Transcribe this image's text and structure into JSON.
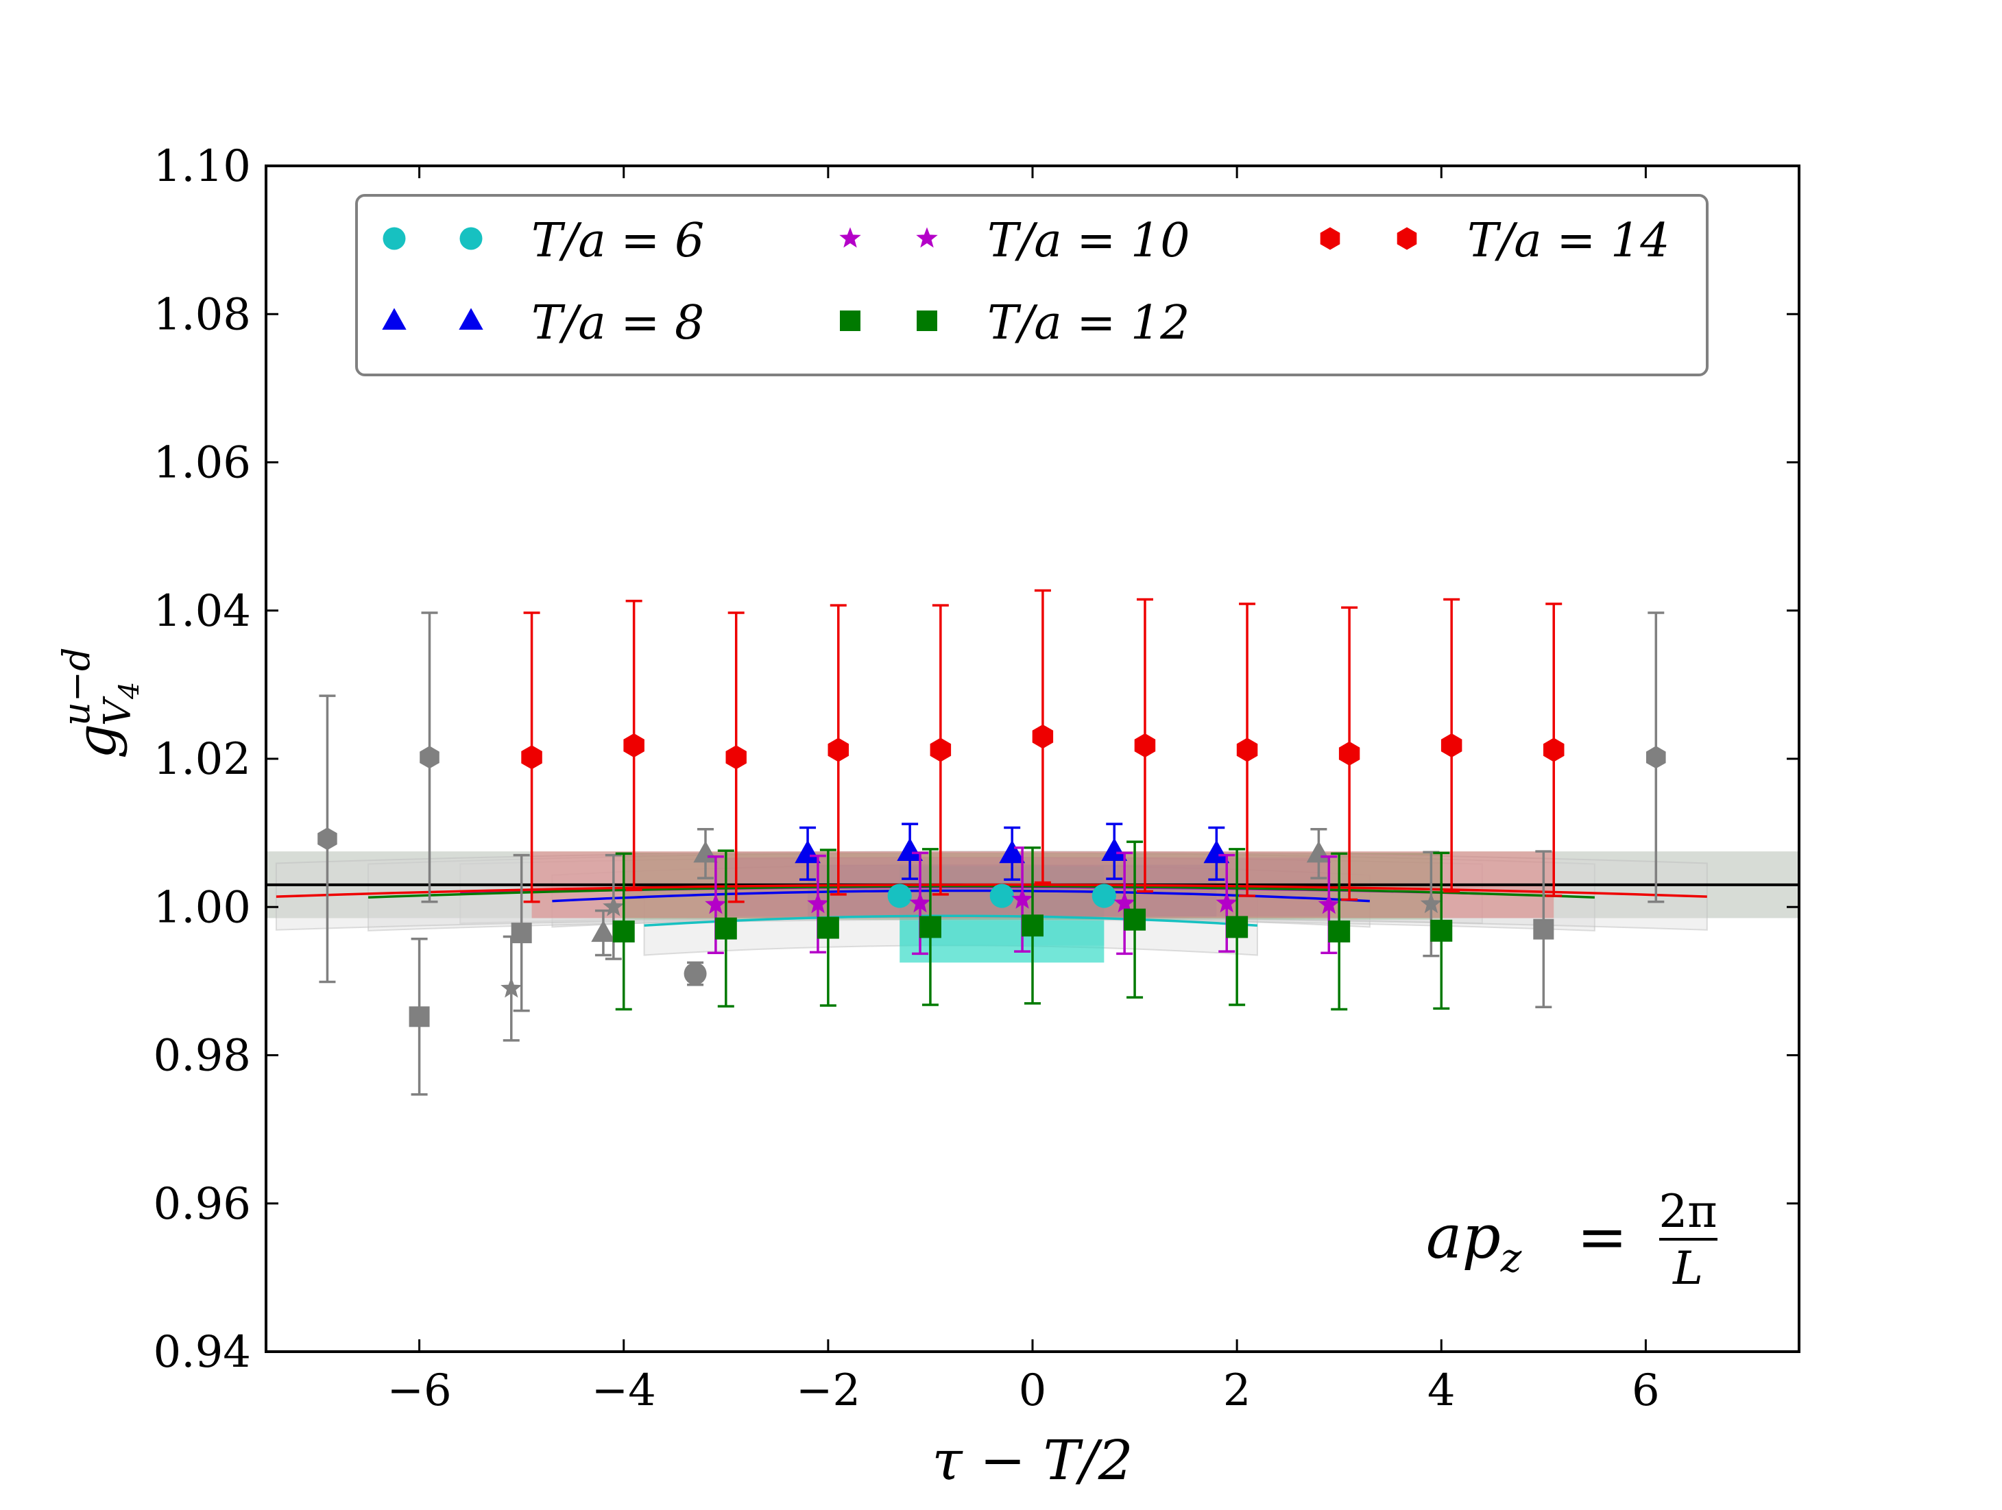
{
  "chart_data": {
    "type": "scatter",
    "title": "",
    "xlabel": "τ − T/2",
    "ylabel": "g",
    "ylabel_sup": "u−d",
    "ylabel_sub": "V",
    "ylabel_subsub": "4",
    "xlim": [
      -7.5,
      7.5
    ],
    "ylim": [
      0.94,
      1.1
    ],
    "xticks": [
      -6,
      -4,
      -2,
      0,
      2,
      4,
      6
    ],
    "xtick_labels": [
      "−6",
      "−4",
      "−2",
      "0",
      "2",
      "4",
      "6"
    ],
    "yticks": [
      0.94,
      0.96,
      0.98,
      1.0,
      1.02,
      1.04,
      1.06,
      1.08,
      1.1
    ],
    "ytick_labels": [
      "0.94",
      "0.96",
      "0.98",
      "1.00",
      "1.02",
      "1.04",
      "1.06",
      "1.08",
      "1.10"
    ],
    "legend_position": "top",
    "annotation": {
      "lhs": "ap",
      "lhs_sub": "z",
      "eq": "=",
      "num": "2π",
      "den": "L"
    },
    "reference_line": {
      "y": 1.003,
      "color": "#000000"
    },
    "global_band": {
      "center": 1.003,
      "halfwidth": 0.0045,
      "color": "#b7bfb4"
    },
    "series": [
      {
        "name": "T/a = 6",
        "label": "T/a = 6",
        "marker": "circle",
        "color": "#17c1c1",
        "points": [
          {
            "x": -1.3,
            "y": 1.0015,
            "err": 0.001
          },
          {
            "x": -0.3,
            "y": 1.0015,
            "err": 0.001
          },
          {
            "x": 0.7,
            "y": 1.0015,
            "err": 0.001
          }
        ],
        "excluded": [
          {
            "x": -3.3,
            "y": 0.991,
            "err": 0.0015
          }
        ],
        "band": {
          "x0": -1.3,
          "x1": 0.7,
          "y0": 0.9925,
          "y1": 1.0055,
          "color": "#37dcc8"
        },
        "fit_curve": {
          "x0": -3.8,
          "x1": 2.2,
          "y_edge": 0.9975,
          "y_mid": 0.9988
        },
        "fit_band_halfwidth": 0.004
      },
      {
        "name": "T/a = 8",
        "label": "T/a = 8",
        "marker": "triangle",
        "color": "#0000ee",
        "points": [
          {
            "x": -2.2,
            "y": 1.0072,
            "err": 0.0035
          },
          {
            "x": -1.2,
            "y": 1.0075,
            "err": 0.0037
          },
          {
            "x": -0.2,
            "y": 1.0072,
            "err": 0.0035
          },
          {
            "x": 0.8,
            "y": 1.0075,
            "err": 0.0037
          },
          {
            "x": 1.8,
            "y": 1.0072,
            "err": 0.0035
          }
        ],
        "excluded": [
          {
            "x": -4.2,
            "y": 0.9965,
            "err": 0.003
          },
          {
            "x": -3.2,
            "y": 1.0072,
            "err": 0.0033
          },
          {
            "x": 2.8,
            "y": 1.0072,
            "err": 0.0033
          }
        ],
        "fit_curve": {
          "x0": -4.7,
          "x1": 3.3,
          "y_edge": 1.0008,
          "y_mid": 1.0022
        },
        "fit_band_halfwidth": 0.0035
      },
      {
        "name": "T/a = 10",
        "label": "T/a = 10",
        "marker": "star",
        "color": "#b400c8",
        "points": [
          {
            "x": -3.1,
            "y": 1.0003,
            "err": 0.0065
          },
          {
            "x": -2.1,
            "y": 1.0004,
            "err": 0.0065
          },
          {
            "x": -1.1,
            "y": 1.0005,
            "err": 0.0068
          },
          {
            "x": -0.1,
            "y": 1.001,
            "err": 0.007
          },
          {
            "x": 0.9,
            "y": 1.0005,
            "err": 0.0068
          },
          {
            "x": 1.9,
            "y": 1.0005,
            "err": 0.0065
          },
          {
            "x": 2.9,
            "y": 1.0003,
            "err": 0.0065
          }
        ],
        "excluded": [
          {
            "x": -5.1,
            "y": 0.989,
            "err": 0.007
          },
          {
            "x": -4.1,
            "y": 1.0,
            "err": 0.007
          },
          {
            "x": 3.9,
            "y": 1.0004,
            "err": 0.007
          }
        ],
        "fit_curve": {
          "x0": -5.6,
          "x1": 4.4,
          "y_edge": 1.0018,
          "y_mid": 1.0027
        },
        "fit_band_halfwidth": 0.004
      },
      {
        "name": "T/a = 12",
        "label": "T/a = 12",
        "marker": "square",
        "color": "#007a00",
        "points": [
          {
            "x": -4.0,
            "y": 0.9967,
            "err": 0.0105
          },
          {
            "x": -3.0,
            "y": 0.9971,
            "err": 0.0105
          },
          {
            "x": -2.0,
            "y": 0.9972,
            "err": 0.0105
          },
          {
            "x": -1.0,
            "y": 0.9973,
            "err": 0.0105
          },
          {
            "x": 0.0,
            "y": 0.9975,
            "err": 0.0105
          },
          {
            "x": 1.0,
            "y": 0.9983,
            "err": 0.0105
          },
          {
            "x": 2.0,
            "y": 0.9973,
            "err": 0.0105
          },
          {
            "x": 3.0,
            "y": 0.9967,
            "err": 0.0105
          },
          {
            "x": 4.0,
            "y": 0.9968,
            "err": 0.0105
          }
        ],
        "excluded": [
          {
            "x": -6.0,
            "y": 0.9852,
            "err": 0.0105
          },
          {
            "x": -5.0,
            "y": 0.9965,
            "err": 0.0105
          },
          {
            "x": 5.0,
            "y": 0.997,
            "err": 0.0105
          }
        ],
        "fit_curve": {
          "x0": -6.5,
          "x1": 5.5,
          "y_edge": 1.0013,
          "y_mid": 1.0028
        },
        "fit_band_halfwidth": 0.0045
      },
      {
        "name": "T/a = 14",
        "label": "T/a = 14",
        "marker": "hexagon",
        "color": "#ee0000",
        "points": [
          {
            "x": -4.9,
            "y": 1.0202,
            "err": 0.0195
          },
          {
            "x": -3.9,
            "y": 1.0218,
            "err": 0.0195
          },
          {
            "x": -2.9,
            "y": 1.0202,
            "err": 0.0195
          },
          {
            "x": -1.9,
            "y": 1.0212,
            "err": 0.0195
          },
          {
            "x": -0.9,
            "y": 1.0212,
            "err": 0.0195
          },
          {
            "x": 0.1,
            "y": 1.023,
            "err": 0.0197
          },
          {
            "x": 1.1,
            "y": 1.0218,
            "err": 0.0197
          },
          {
            "x": 2.1,
            "y": 1.0212,
            "err": 0.0197
          },
          {
            "x": 3.1,
            "y": 1.0207,
            "err": 0.0197
          },
          {
            "x": 4.1,
            "y": 1.0218,
            "err": 0.0197
          },
          {
            "x": 5.1,
            "y": 1.0212,
            "err": 0.0197
          }
        ],
        "excluded": [
          {
            "x": -6.9,
            "y": 1.0092,
            "err": 0.0193
          },
          {
            "x": -5.9,
            "y": 1.0202,
            "err": 0.0195
          },
          {
            "x": 6.1,
            "y": 1.0202,
            "err": 0.0195
          }
        ],
        "fit_curve": {
          "x0": -7.4,
          "x1": 6.6,
          "y_edge": 1.0014,
          "y_mid": 1.003
        },
        "fit_band_halfwidth": 0.0045
      }
    ],
    "excluded_color": "#808080"
  }
}
